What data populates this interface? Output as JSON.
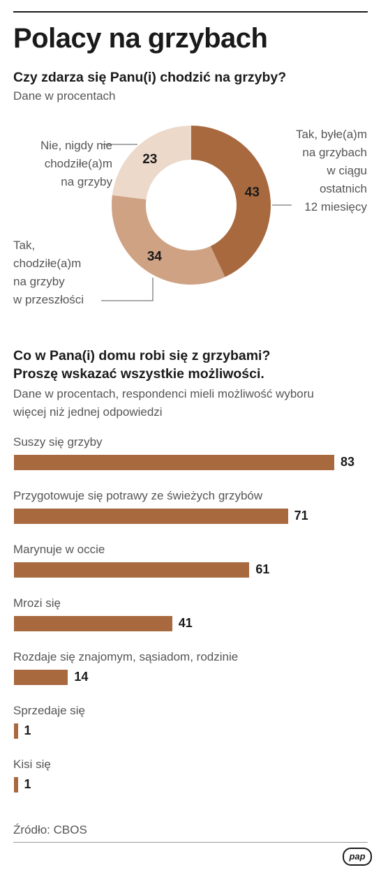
{
  "header": {
    "title": "Polacy na grzybach"
  },
  "chart_data": [
    {
      "type": "pie",
      "title": "Czy zdarza się Panu(i) chodzić na grzyby?",
      "subtitle": "Dane w procentach",
      "categories": [
        "Tak, byłe(a)m na grzybach w ciągu ostatnich 12 miesięcy",
        "Tak, chodziłe(a)m na grzyby w przeszłości",
        "Nie, nigdy nie chodziłe(a)m na grzyby"
      ],
      "values": [
        43,
        34,
        23
      ],
      "value_labels": [
        "43",
        "34",
        "23"
      ],
      "colors": [
        "#a8693f",
        "#cfa284",
        "#ecd9ca"
      ],
      "label_lines": [
        [
          "Tak, byłe(a)m",
          "na grzybach",
          "w ciągu",
          "ostatnich",
          "12 miesięcy"
        ],
        [
          "Tak,",
          "chodziłe(a)m",
          "na grzyby",
          "w przeszłości"
        ],
        [
          "Nie, nigdy nie",
          "chodziłe(a)m",
          "na grzyby"
        ]
      ]
    },
    {
      "type": "bar",
      "title_lines": [
        "Co w Pana(i) domu robi się z grzybami?",
        "Proszę wskazać wszystkie możliwości."
      ],
      "subtitle_lines": [
        "Dane w procentach, respondenci mieli możliwość wyboru",
        "więcej niż jednej odpowiedzi"
      ],
      "categories": [
        "Suszy się grzyby",
        "Przygotowuje się potrawy ze świeżych grzybów",
        "Marynuje w occie",
        "Mrozi się",
        "Rozdaje się znajomym, sąsiadom, rodzinie",
        "Sprzedaje się",
        "Kisi się"
      ],
      "values": [
        83,
        71,
        61,
        41,
        14,
        1,
        1
      ],
      "value_labels": [
        "83",
        "71",
        "61",
        "41",
        "14",
        "1",
        "1"
      ],
      "color": "#a8693f",
      "xlim": [
        0,
        83
      ]
    }
  ],
  "footer": {
    "source": "Źródło: CBOS",
    "logo_text": "pap"
  }
}
